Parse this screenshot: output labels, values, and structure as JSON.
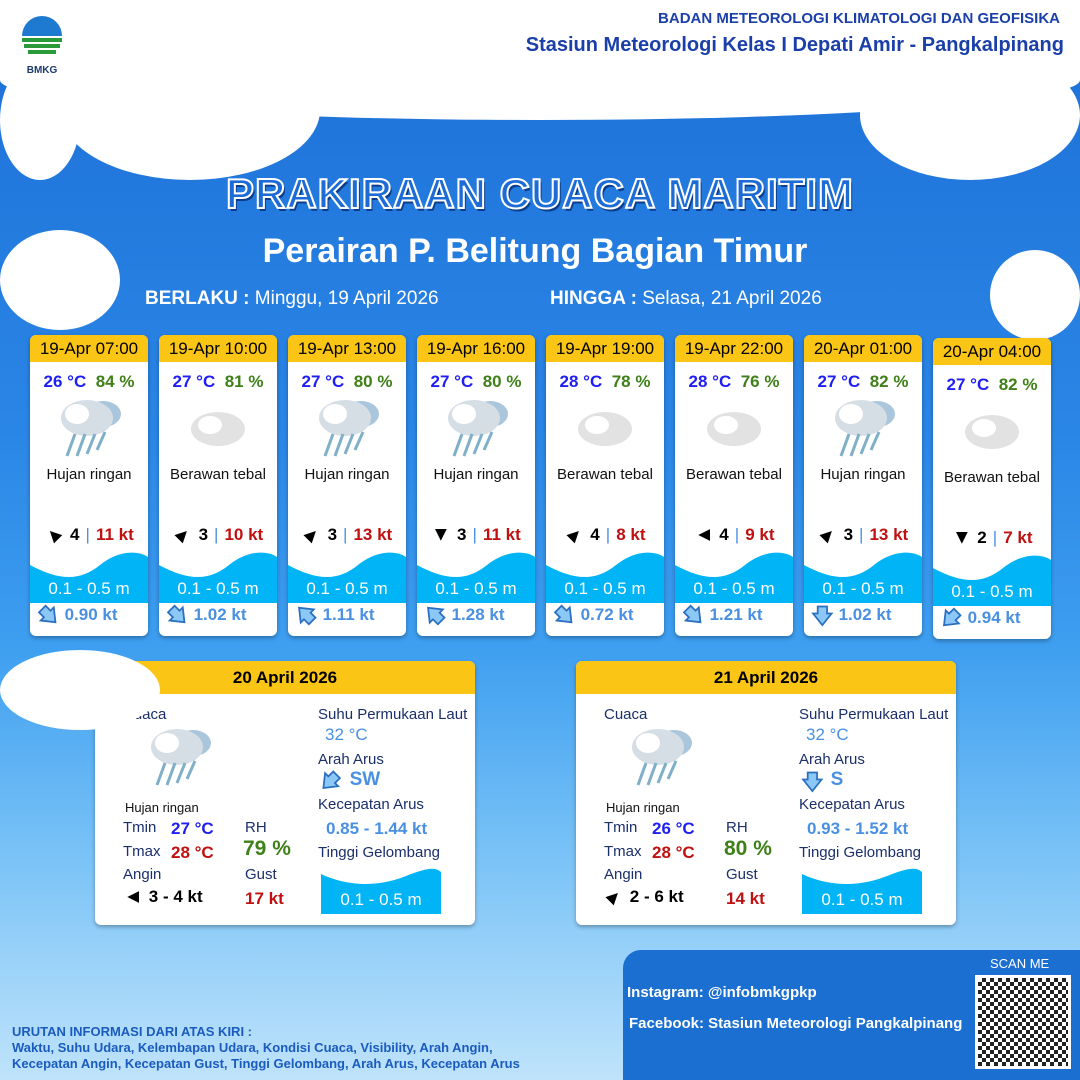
{
  "header": {
    "logo_text": "BMKG",
    "agency": "BADAN METEOROLOGI KLIMATOLOGI DAN GEOFISIKA",
    "station": "Stasiun Meteorologi Kelas I Depati Amir - Pangkalpinang"
  },
  "title": "PRAKIRAAN CUACA MARITIM",
  "subtitle": "Perairan P. Belitung Bagian Timur",
  "validity": {
    "from_label": "BERLAKU :",
    "from": "Minggu, 19 April 2026",
    "to_label": "HINGGA :",
    "to": "Selasa, 21 April 2026"
  },
  "forecasts": [
    {
      "time": "19-Apr 07:00",
      "temp": "26 °C",
      "rh": "84 %",
      "icon": "light-rain",
      "condition": "Hujan ringan",
      "wind_dir": "NW",
      "wind_speed": "4",
      "gust": "11 kt",
      "wave": "0.1 - 0.5 m",
      "current_dir": "SE",
      "current_speed": "0.90 kt"
    },
    {
      "time": "19-Apr 10:00",
      "temp": "27 °C",
      "rh": "81 %",
      "icon": "overcast",
      "condition": "Berawan tebal",
      "wind_dir": "NE",
      "wind_speed": "3",
      "gust": "10 kt",
      "wave": "0.1 - 0.5 m",
      "current_dir": "SE",
      "current_speed": "1.02 kt"
    },
    {
      "time": "19-Apr 13:00",
      "temp": "27 °C",
      "rh": "80 %",
      "icon": "light-rain",
      "condition": "Hujan ringan",
      "wind_dir": "NE",
      "wind_speed": "3",
      "gust": "13 kt",
      "wave": "0.1 - 0.5 m",
      "current_dir": "NW",
      "current_speed": "1.11 kt"
    },
    {
      "time": "19-Apr 16:00",
      "temp": "27 °C",
      "rh": "80 %",
      "icon": "light-rain",
      "condition": "Hujan ringan",
      "wind_dir": "S",
      "wind_speed": "3",
      "gust": "11 kt",
      "wave": "0.1 - 0.5 m",
      "current_dir": "NW",
      "current_speed": "1.28 kt"
    },
    {
      "time": "19-Apr 19:00",
      "temp": "28 °C",
      "rh": "78 %",
      "icon": "overcast",
      "condition": "Berawan tebal",
      "wind_dir": "NE",
      "wind_speed": "4",
      "gust": "8 kt",
      "wave": "0.1 - 0.5 m",
      "current_dir": "SE",
      "current_speed": "0.72 kt"
    },
    {
      "time": "19-Apr 22:00",
      "temp": "28 °C",
      "rh": "76 %",
      "icon": "overcast",
      "condition": "Berawan tebal",
      "wind_dir": "W",
      "wind_speed": "4",
      "gust": "9 kt",
      "wave": "0.1 - 0.5 m",
      "current_dir": "SE",
      "current_speed": "1.21 kt"
    },
    {
      "time": "20-Apr 01:00",
      "temp": "27 °C",
      "rh": "82 %",
      "icon": "light-rain",
      "condition": "Hujan ringan",
      "wind_dir": "NE",
      "wind_speed": "3",
      "gust": "13 kt",
      "wave": "0.1 - 0.5 m",
      "current_dir": "S",
      "current_speed": "1.02 kt"
    },
    {
      "time": "20-Apr 04:00",
      "temp": "27 °C",
      "rh": "82 %",
      "icon": "overcast",
      "condition": "Berawan tebal",
      "wind_dir": "S",
      "wind_speed": "2",
      "gust": "7 kt",
      "wave": "0.1 - 0.5 m",
      "current_dir": "SW",
      "current_speed": "0.94 kt"
    }
  ],
  "summaries": [
    {
      "date": "20 April 2026",
      "weather_label": "Cuaca",
      "icon": "light-rain",
      "condition": "Hujan ringan",
      "tmin_label": "Tmin",
      "tmin": "27 °C",
      "tmax_label": "Tmax",
      "tmax": "28 °C",
      "rh_label": "RH",
      "rh": "79 %",
      "wind_label": "Angin",
      "wind_dir": "W",
      "wind": "3  - 4 kt",
      "gust_label": "Gust",
      "gust": "17 kt",
      "sst_label": "Suhu Permukaan Laut",
      "sst": "32 °C",
      "current_dir_label": "Arah Arus",
      "current_dir": "SW",
      "current_speed_label": "Kecepatan Arus",
      "current_speed": "0.85 - 1.44 kt",
      "wave_label": "Tinggi Gelombang",
      "wave": "0.1 - 0.5 m"
    },
    {
      "date": "21 April 2026",
      "weather_label": "Cuaca",
      "icon": "light-rain",
      "condition": "Hujan ringan",
      "tmin_label": "Tmin",
      "tmin": "26 °C",
      "tmax_label": "Tmax",
      "tmax": "28 °C",
      "rh_label": "RH",
      "rh": "80 %",
      "wind_label": "Angin",
      "wind_dir": "NE",
      "wind": "2  - 6 kt",
      "gust_label": "Gust",
      "gust": "14 kt",
      "sst_label": "Suhu Permukaan Laut",
      "sst": "32 °C",
      "current_dir_label": "Arah Arus",
      "current_dir": "S",
      "current_speed_label": "Kecepatan Arus",
      "current_speed": "0.93 - 1.52 kt",
      "wave_label": "Tinggi Gelombang",
      "wave": "0.1 - 0.5 m"
    }
  ],
  "footer": {
    "info_title": "URUTAN INFORMASI DARI ATAS KIRI :",
    "info_line1": "Waktu, Suhu Udara, Kelembapan Udara, Kondisi Cuaca, Visibility, Arah Angin,",
    "info_line2": "Kecepatan Angin, Kecepatan Gust, Tinggi Gelombang, Arah Arus, Kecepatan Arus",
    "instagram": "Instagram:  @infobmkgpkp",
    "facebook": "Facebook:  Stasiun  Meteorologi  Pangkalpinang",
    "scan": "SCAN ME"
  },
  "colors": {
    "card_header": "#fbc515",
    "wave": "#00b4f5",
    "temp": "#1f1ff5",
    "humidity": "#3f8018",
    "gust": "#c01010",
    "current": "#4a90e2"
  }
}
